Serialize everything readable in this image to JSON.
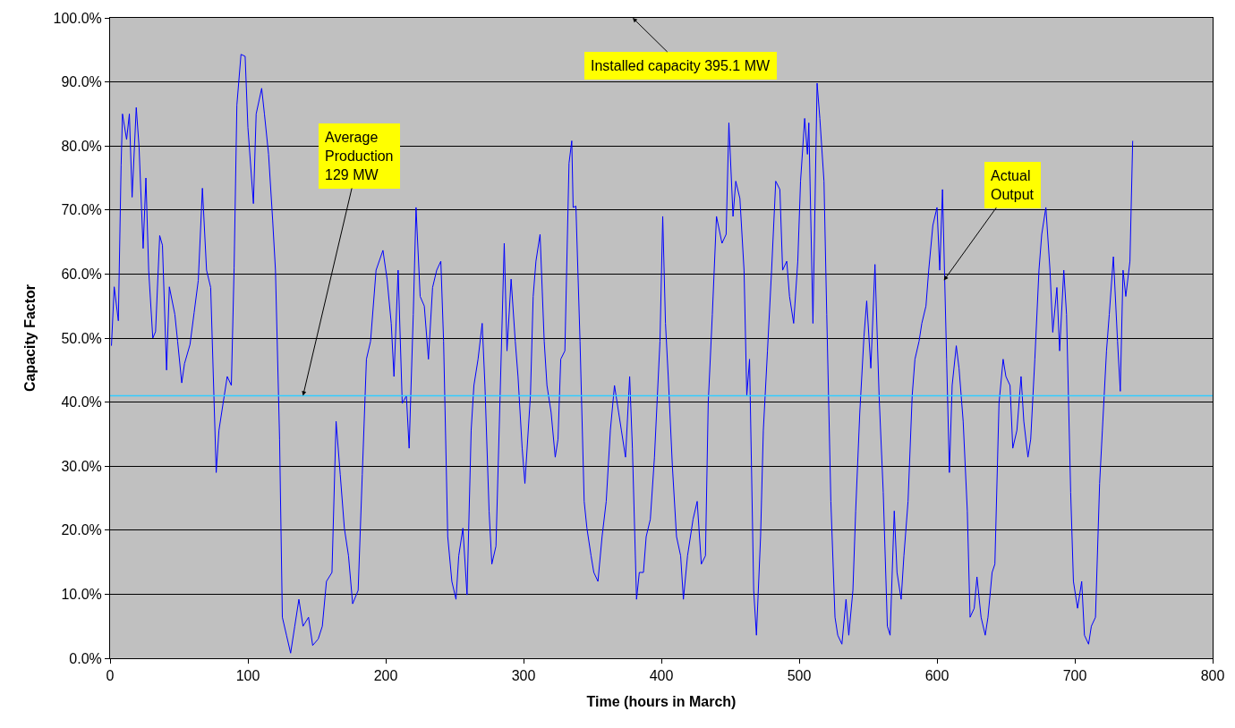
{
  "chart_data": {
    "type": "line",
    "xlabel": "Time (hours in March)",
    "ylabel": "Capacity Factor",
    "xlim": [
      0,
      800
    ],
    "xticks": [
      0,
      100,
      200,
      300,
      400,
      500,
      600,
      700,
      800
    ],
    "ylim": [
      0,
      100
    ],
    "yticks": [
      {
        "value": 0,
        "label": "0.0%"
      },
      {
        "value": 10,
        "label": "10.0%"
      },
      {
        "value": 20,
        "label": "20.0%"
      },
      {
        "value": 30,
        "label": "30.0%"
      },
      {
        "value": 40,
        "label": "40.0%"
      },
      {
        "value": 50,
        "label": "50.0%"
      },
      {
        "value": 60,
        "label": "60.0%"
      },
      {
        "value": 70,
        "label": "70.0%"
      },
      {
        "value": 80,
        "label": "80.0%"
      },
      {
        "value": 90,
        "label": "90.0%"
      },
      {
        "value": 100,
        "label": "100.0%"
      }
    ],
    "grid": "y",
    "marker": "none",
    "line_style": "solid",
    "x": [
      1,
      3,
      6,
      8,
      9,
      12,
      14,
      16,
      19,
      21,
      24,
      26,
      28,
      31,
      33,
      36,
      38,
      41,
      43,
      47,
      49,
      52,
      54,
      58,
      61,
      64,
      67,
      70,
      73,
      77,
      79,
      82,
      85,
      88,
      90,
      92,
      95,
      98,
      100,
      104,
      106,
      110,
      112,
      115,
      118,
      120,
      123,
      125,
      128,
      131,
      134,
      137,
      140,
      144,
      147,
      151,
      154,
      157,
      161,
      164,
      167,
      170,
      173,
      176,
      180,
      183,
      186,
      189,
      193,
      198,
      201,
      204,
      206,
      209,
      212,
      215,
      217,
      220,
      222,
      225,
      228,
      231,
      234,
      237,
      240,
      242,
      245,
      248,
      251,
      253,
      256,
      259,
      262,
      264,
      267,
      270,
      272,
      275,
      277,
      280,
      283,
      286,
      288,
      291,
      294,
      296,
      299,
      301,
      305,
      307,
      309,
      312,
      315,
      317,
      320,
      323,
      325,
      327,
      330,
      333,
      335,
      336,
      338,
      341,
      344,
      346,
      349,
      351,
      354,
      357,
      360,
      363,
      366,
      369,
      371,
      374,
      377,
      379,
      382,
      384,
      387,
      389,
      392,
      395,
      399,
      401,
      403,
      405,
      408,
      411,
      414,
      416,
      419,
      423,
      426,
      429,
      432,
      434,
      437,
      440,
      444,
      447,
      449,
      452,
      454,
      457,
      460,
      462,
      464,
      467,
      469,
      472,
      474,
      477,
      480,
      483,
      486,
      488,
      491,
      493,
      496,
      499,
      501,
      504,
      506,
      507,
      510,
      513,
      515,
      518,
      520,
      523,
      526,
      528,
      531,
      534,
      536,
      539,
      541,
      544,
      547,
      549,
      552,
      555,
      558,
      561,
      564,
      566,
      569,
      571,
      574,
      576,
      579,
      582,
      584,
      587,
      589,
      592,
      594,
      597,
      600,
      602,
      604,
      607,
      609,
      611,
      614,
      616,
      619,
      622,
      624,
      627,
      629,
      632,
      635,
      637,
      640,
      642,
      645,
      648,
      650,
      653,
      655,
      658,
      661,
      663,
      666,
      668,
      671,
      674,
      676,
      679,
      682,
      684,
      687,
      689,
      692,
      694,
      697,
      699,
      702,
      705,
      707,
      710,
      712,
      715,
      718,
      720,
      723,
      725,
      728,
      731,
      733,
      735,
      737,
      740,
      742
    ],
    "series": [
      {
        "color": "#0000ff",
        "values": [
          48.8,
          58,
          52.7,
          77,
          85,
          81,
          85,
          72,
          86,
          80,
          64,
          75,
          60.6,
          50,
          51,
          66,
          64.5,
          45,
          58,
          53.7,
          49.5,
          43,
          46,
          49,
          54,
          59,
          73.4,
          60.6,
          57.9,
          29,
          35.6,
          39.8,
          44,
          42.6,
          61,
          86.4,
          94.3,
          94,
          82.9,
          71,
          85,
          89,
          85,
          78.7,
          68.3,
          60.6,
          34.2,
          6.4,
          3.6,
          0.8,
          5,
          9.2,
          5,
          6.4,
          2,
          3,
          5,
          12,
          13.4,
          37,
          28.7,
          20.3,
          16,
          8.5,
          10.6,
          28.7,
          46.7,
          49.5,
          60.6,
          63.7,
          59.2,
          52.3,
          44,
          60.6,
          39.8,
          41,
          32.8,
          53.7,
          70.4,
          56.5,
          55,
          46.7,
          57.9,
          60.6,
          62,
          49.5,
          19,
          12,
          9.2,
          16,
          20.3,
          9.9,
          35.6,
          42.6,
          46.7,
          52.3,
          42.6,
          23,
          14.7,
          17.5,
          41,
          64.8,
          48,
          59.2,
          49.5,
          44,
          32.8,
          27.3,
          41,
          56.5,
          62,
          66.2,
          49.5,
          42.6,
          38.4,
          31.4,
          34.2,
          46.7,
          48,
          77.3,
          80.8,
          70.4,
          70.6,
          49.5,
          24.5,
          20.3,
          16,
          13.4,
          12,
          19,
          24.5,
          35.6,
          42.6,
          38.4,
          35.6,
          31.4,
          44,
          32.8,
          9.2,
          13.4,
          13.4,
          19,
          21.7,
          31.4,
          49.5,
          69,
          52.3,
          44,
          30,
          19,
          16,
          9.2,
          16,
          21.7,
          24.5,
          14.7,
          16,
          39.8,
          53.7,
          69,
          64.8,
          66.2,
          83.6,
          69,
          74.5,
          71.8,
          60.6,
          41,
          46.7,
          10.6,
          3.6,
          19,
          35.6,
          48,
          60.6,
          74.5,
          73.2,
          60.6,
          62,
          56.5,
          52.3,
          62,
          74.5,
          84.3,
          78.7,
          83.6,
          52.3,
          89.8,
          84.3,
          74.5,
          53.7,
          24.5,
          6.4,
          3.6,
          2.2,
          9.2,
          3.6,
          10.6,
          23,
          38.4,
          50.2,
          55.8,
          45.3,
          61.5,
          41,
          25.9,
          5,
          3.6,
          23,
          13.4,
          9.2,
          16,
          24.5,
          41,
          46.7,
          49.5,
          52.3,
          55,
          60.6,
          67.6,
          70.4,
          60.6,
          73.2,
          46.7,
          29,
          42.6,
          48.8,
          45.3,
          37,
          23,
          6.4,
          7.8,
          12.7,
          6.4,
          3.6,
          6.4,
          13.4,
          14.7,
          39.8,
          46.7,
          44,
          42.6,
          32.8,
          35.6,
          44,
          37,
          31.4,
          34.2,
          46.7,
          60.6,
          66.2,
          70.4,
          60.6,
          50.9,
          57.9,
          48,
          60.6,
          53.7,
          25.9,
          12,
          7.8,
          12,
          3.6,
          2.2,
          5,
          6.4,
          27.3,
          35.6,
          48,
          53.7,
          62.7,
          49.5,
          41.7,
          60.6,
          56.5,
          62,
          80.8
        ]
      }
    ],
    "ref_lines": [
      {
        "axis": "y",
        "value": 41,
        "color": "#33ccff",
        "line_style": "solid"
      }
    ],
    "annotations": [
      "Installed capacity 395.1 MW",
      {
        "text": "Average\nProduction\n129 MW",
        "x": 140,
        "y": 41
      },
      {
        "text": "Actual\nOutput",
        "x": 605,
        "y": 59
      }
    ]
  }
}
